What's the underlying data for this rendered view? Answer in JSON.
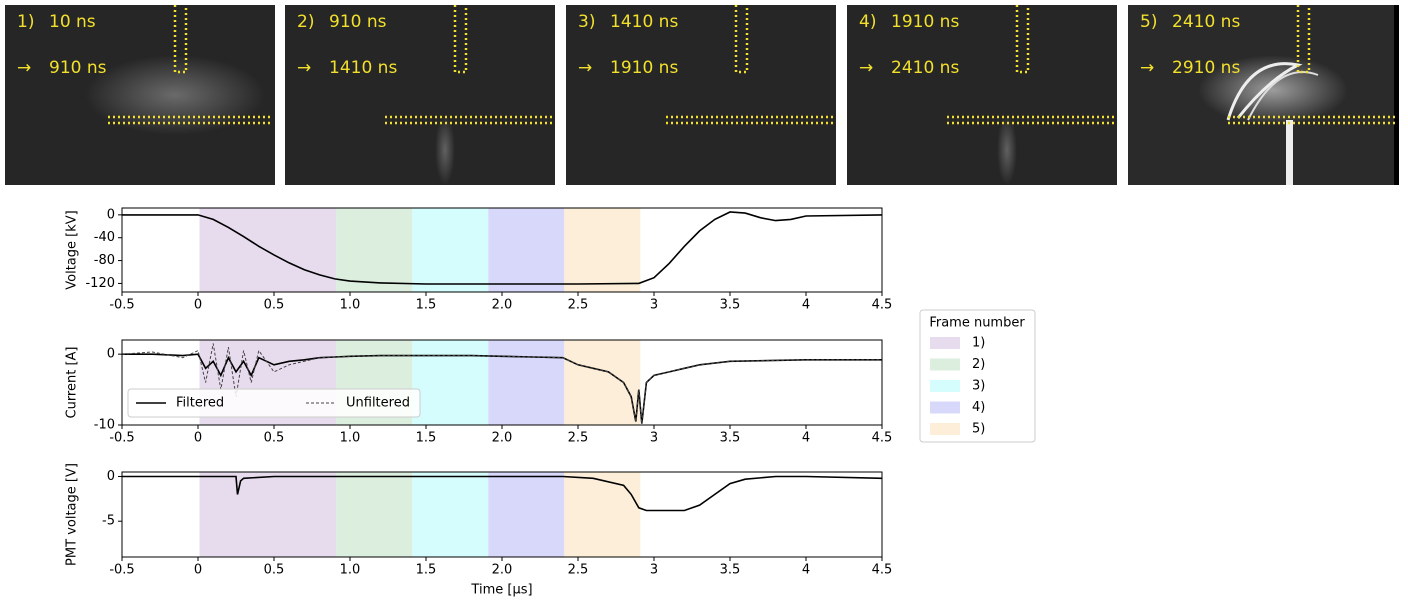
{
  "frames": [
    {
      "number": "1)",
      "start": "10 ns",
      "arrow": "→",
      "end": "910 ns"
    },
    {
      "number": "2)",
      "start": "910 ns",
      "arrow": "→",
      "end": "1410 ns"
    },
    {
      "number": "3)",
      "start": "1410 ns",
      "arrow": "→",
      "end": "1910 ns"
    },
    {
      "number": "4)",
      "start": "1910 ns",
      "arrow": "→",
      "end": "2410 ns"
    },
    {
      "number": "5)",
      "start": "2410 ns",
      "arrow": "→",
      "end": "2910 ns"
    }
  ],
  "frame_legend": {
    "title": "Frame number",
    "entries": [
      {
        "label": "1)",
        "start": 0.01,
        "end": 0.91,
        "color": "#e7dbee"
      },
      {
        "label": "2)",
        "start": 0.91,
        "end": 1.41,
        "color": "#dcefdf"
      },
      {
        "label": "3)",
        "start": 1.41,
        "end": 1.91,
        "color": "#d6fdfd"
      },
      {
        "label": "4)",
        "start": 1.91,
        "end": 2.41,
        "color": "#d8d8fb"
      },
      {
        "label": "5)",
        "start": 2.41,
        "end": 2.91,
        "color": "#fdeed9"
      }
    ]
  },
  "chart_data": [
    {
      "type": "line",
      "ylabel": "Voltage [kV]",
      "xlim": [
        -0.5,
        4.5
      ],
      "xticks": [
        -0.5,
        0,
        0.5,
        {
          "value": 1,
          "label": "1.0"
        },
        1.5,
        {
          "value": 2,
          "label": "2.0"
        },
        2.5,
        3,
        3.5,
        4,
        4.5
      ],
      "ylim": [
        -135,
        12
      ],
      "yticks": [
        0,
        -40,
        -80,
        -120
      ],
      "x": [
        -0.5,
        0,
        0.1,
        0.2,
        0.3,
        0.4,
        0.5,
        0.6,
        0.7,
        0.8,
        0.9,
        1.0,
        1.2,
        1.5,
        2.0,
        2.5,
        2.9,
        3.0,
        3.1,
        3.2,
        3.3,
        3.4,
        3.5,
        3.6,
        3.7,
        3.8,
        3.9,
        4.0,
        4.5
      ],
      "series": [
        {
          "color": "#000000",
          "values": [
            0,
            0,
            -8,
            -22,
            -38,
            -55,
            -70,
            -84,
            -96,
            -105,
            -112,
            -116,
            -119,
            -121,
            -121,
            -121,
            -120,
            -110,
            -85,
            -55,
            -28,
            -8,
            5,
            3,
            -5,
            -10,
            -8,
            -2,
            0
          ]
        }
      ]
    },
    {
      "type": "line",
      "ylabel": "Current [A]",
      "xlim": [
        -0.5,
        4.5
      ],
      "xticks": [
        -0.5,
        0,
        0.5,
        {
          "value": 1,
          "label": "1.0"
        },
        1.5,
        {
          "value": 2,
          "label": "2.0"
        },
        2.5,
        3,
        3.5,
        4,
        4.5
      ],
      "ylim": [
        -10,
        2
      ],
      "yticks": [
        0,
        -10
      ],
      "legend": "lower left",
      "x": [
        -0.5,
        -0.3,
        -0.1,
        0,
        0.05,
        0.1,
        0.15,
        0.2,
        0.25,
        0.3,
        0.35,
        0.4,
        0.5,
        0.6,
        0.7,
        0.8,
        0.9,
        1.0,
        1.2,
        1.4,
        1.6,
        1.8,
        2.0,
        2.2,
        2.4,
        2.5,
        2.6,
        2.7,
        2.8,
        2.85,
        2.88,
        2.9,
        2.92,
        2.95,
        3.0,
        3.1,
        3.2,
        3.3,
        3.5,
        4.0,
        4.5
      ],
      "series": [
        {
          "name": "Filtered",
          "color": "#000000",
          "dashed": false,
          "values": [
            0,
            0,
            -0.2,
            0,
            -2,
            -1,
            -3,
            -0.5,
            -2.5,
            -1,
            -3,
            -0.5,
            -1.5,
            -1,
            -0.8,
            -0.5,
            -0.4,
            -0.3,
            -0.2,
            -0.2,
            -0.2,
            -0.2,
            -0.3,
            -0.4,
            -0.5,
            -1.5,
            -2,
            -2.5,
            -4,
            -6,
            -9.5,
            -5,
            -9.8,
            -4,
            -3,
            -2.5,
            -2,
            -1.5,
            -1,
            -0.8,
            -0.8
          ]
        },
        {
          "name": "Unfiltered",
          "color": "#444444",
          "dashed": true,
          "values": [
            0,
            0.3,
            -0.5,
            0.5,
            -4,
            1.5,
            -5,
            1,
            -6,
            0.5,
            -4,
            0.5,
            -2.5,
            -1.5,
            -1,
            -0.5,
            -0.4,
            -0.3,
            -0.2,
            -0.2,
            -0.2,
            -0.2,
            -0.3,
            -0.4,
            -0.5,
            -1.5,
            -2,
            -2.5,
            -4,
            -6,
            -9.5,
            -5,
            -9.8,
            -4,
            -3,
            -2.5,
            -2,
            -1.5,
            -1,
            -0.8,
            -0.8
          ]
        }
      ]
    },
    {
      "type": "line",
      "ylabel": "PMT voltage [V]",
      "xlabel": "Time [μs]",
      "xlim": [
        -0.5,
        4.5
      ],
      "xticks": [
        -0.5,
        0,
        0.5,
        {
          "value": 1,
          "label": "1.0"
        },
        1.5,
        {
          "value": 2,
          "label": "2.0"
        },
        2.5,
        3,
        3.5,
        4,
        4.5
      ],
      "ylim": [
        -9,
        0.5
      ],
      "yticks": [
        0,
        -5
      ],
      "x": [
        -0.5,
        0,
        0.25,
        0.26,
        0.28,
        0.3,
        0.5,
        1.0,
        1.5,
        2.0,
        2.4,
        2.6,
        2.8,
        2.85,
        2.9,
        2.95,
        3.0,
        3.2,
        3.3,
        3.4,
        3.5,
        3.6,
        3.8,
        4.0,
        4.5
      ],
      "series": [
        {
          "color": "#000000",
          "values": [
            0,
            0,
            0,
            -2,
            -0.5,
            -0.2,
            0,
            0,
            0,
            0,
            0,
            -0.2,
            -1,
            -2,
            -3.5,
            -3.8,
            -3.8,
            -3.8,
            -3.2,
            -2,
            -0.8,
            -0.3,
            0,
            0,
            -0.2
          ]
        }
      ]
    }
  ]
}
